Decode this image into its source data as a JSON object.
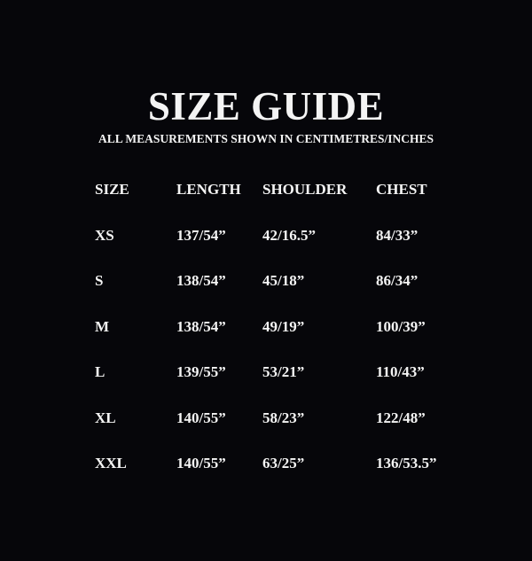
{
  "title": "SIZE GUIDE",
  "subtitle": "ALL MEASUREMENTS SHOWN IN CENTIMETRES/INCHES",
  "headers": [
    "SIZE",
    "LENGTH",
    "SHOULDER",
    "CHEST"
  ],
  "rows": [
    [
      "XS",
      "137/54”",
      "42/16.5”",
      "84/33”"
    ],
    [
      "S",
      "138/54”",
      "45/18”",
      "86/34”"
    ],
    [
      "M",
      "138/54”",
      "49/19”",
      "100/39”"
    ],
    [
      "L",
      "139/55”",
      "53/21”",
      "110/43”"
    ],
    [
      "XL",
      "140/55”",
      "58/23”",
      "122/48”"
    ],
    [
      "XXL",
      "140/55”",
      "63/25”",
      "136/53.5”"
    ]
  ],
  "colors": {
    "background": "#06060a",
    "text": "#f4f4f4"
  }
}
